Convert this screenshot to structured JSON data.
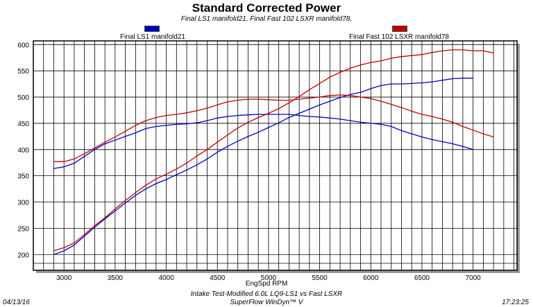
{
  "chart_data": {
    "type": "line",
    "title": "Standard Corrected Power",
    "subtitle": "Final LS1 manifold21, Final Fast 102 LSXR manifold78,",
    "xlabel": "EngSpd RPM",
    "ylabel": "",
    "xlim": [
      2700,
      7430
    ],
    "ylim": [
      170,
      607
    ],
    "xticks": [
      3000,
      3500,
      4000,
      4500,
      5000,
      5500,
      6000,
      6500,
      7000
    ],
    "yticks": [
      200,
      250,
      300,
      350,
      400,
      450,
      500,
      550,
      600
    ],
    "grid": true,
    "legend_position": "top",
    "series": [
      {
        "name": "Final LS1 manifold21",
        "color": "#0000c0",
        "x_start": 2900,
        "x_step": 100,
        "lines": [
          [
            200,
            207,
            218,
            235,
            252,
            268,
            283,
            298,
            313,
            325,
            335,
            343,
            352,
            361,
            371,
            382,
            395,
            406,
            416,
            425,
            433,
            442,
            451,
            461,
            469,
            477,
            485,
            492,
            499,
            505,
            509,
            516,
            522,
            525,
            525,
            526,
            527,
            529,
            532,
            535,
            536,
            536
          ],
          [
            364,
            367,
            374,
            387,
            400,
            411,
            418,
            425,
            432,
            440,
            444,
            446,
            448,
            449,
            451,
            455,
            460,
            463,
            465,
            466,
            467,
            467,
            467,
            467,
            465,
            463,
            462,
            460,
            458,
            455,
            452,
            450,
            448,
            444,
            436,
            430,
            424,
            419,
            415,
            411,
            406,
            400
          ]
        ]
      },
      {
        "name": "Final Fast 102 LSXR manifold78",
        "color": "#c00000",
        "x_start": 2900,
        "x_step": 100,
        "lines": [
          [
            207,
            213,
            222,
            238,
            255,
            270,
            287,
            303,
            318,
            332,
            344,
            353,
            363,
            374,
            388,
            400,
            414,
            428,
            441,
            452,
            461,
            469,
            478,
            489,
            501,
            514,
            526,
            538,
            547,
            555,
            561,
            566,
            569,
            574,
            577,
            579,
            581,
            585,
            588,
            590,
            590,
            588,
            588,
            584
          ],
          [
            377,
            377,
            382,
            392,
            403,
            414,
            424,
            435,
            446,
            455,
            461,
            465,
            467,
            470,
            474,
            479,
            485,
            491,
            494,
            496,
            496,
            495,
            494,
            494,
            496,
            498,
            500,
            503,
            504,
            503,
            500,
            497,
            492,
            486,
            480,
            473,
            467,
            463,
            458,
            452,
            444,
            437,
            430,
            424
          ]
        ]
      }
    ]
  },
  "footer": {
    "date": "04/13/16",
    "time": "17:23:25",
    "test_name": "Intake Test-Modified 6.0L LQ9-LS1 vs Fast LSXR",
    "software": "SuperFlow WinDyn™ V"
  }
}
